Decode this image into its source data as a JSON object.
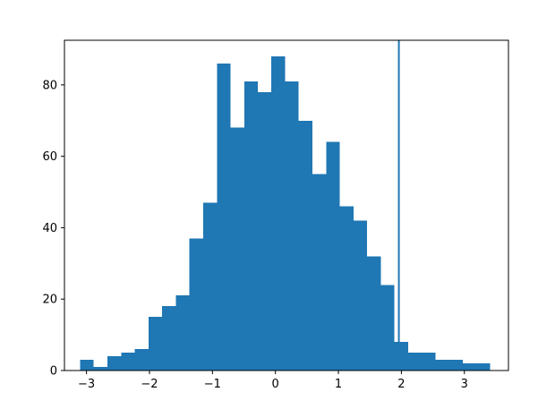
{
  "chart_data": {
    "type": "bar",
    "subtype": "histogram",
    "title": "",
    "xlabel": "",
    "ylabel": "",
    "xlim": [
      -3.35,
      3.7
    ],
    "ylim": [
      0,
      92.5
    ],
    "grid": false,
    "legend": "none",
    "bins": [
      {
        "x0": -3.1,
        "x1": -2.885,
        "count": 3
      },
      {
        "x0": -2.885,
        "x1": -2.665,
        "count": 1
      },
      {
        "x0": -2.665,
        "x1": -2.45,
        "count": 4
      },
      {
        "x0": -2.45,
        "x1": -2.235,
        "count": 5
      },
      {
        "x0": -2.235,
        "x1": -2.015,
        "count": 6
      },
      {
        "x0": -2.015,
        "x1": -1.8,
        "count": 15
      },
      {
        "x0": -1.8,
        "x1": -1.58,
        "count": 18
      },
      {
        "x0": -1.58,
        "x1": -1.365,
        "count": 21
      },
      {
        "x0": -1.365,
        "x1": -1.15,
        "count": 37
      },
      {
        "x0": -1.15,
        "x1": -0.93,
        "count": 47
      },
      {
        "x0": -0.93,
        "x1": -0.715,
        "count": 86
      },
      {
        "x0": -0.715,
        "x1": -0.495,
        "count": 68
      },
      {
        "x0": -0.495,
        "x1": -0.28,
        "count": 81
      },
      {
        "x0": -0.28,
        "x1": -0.065,
        "count": 78
      },
      {
        "x0": -0.065,
        "x1": 0.155,
        "count": 88
      },
      {
        "x0": 0.155,
        "x1": 0.37,
        "count": 81
      },
      {
        "x0": 0.37,
        "x1": 0.59,
        "count": 70
      },
      {
        "x0": 0.59,
        "x1": 0.805,
        "count": 55
      },
      {
        "x0": 0.805,
        "x1": 1.02,
        "count": 64
      },
      {
        "x0": 1.02,
        "x1": 1.24,
        "count": 46
      },
      {
        "x0": 1.24,
        "x1": 1.455,
        "count": 42
      },
      {
        "x0": 1.455,
        "x1": 1.675,
        "count": 32
      },
      {
        "x0": 1.675,
        "x1": 1.89,
        "count": 24
      },
      {
        "x0": 1.89,
        "x1": 2.105,
        "count": 8
      },
      {
        "x0": 2.105,
        "x1": 2.325,
        "count": 5
      },
      {
        "x0": 2.325,
        "x1": 2.54,
        "count": 5
      },
      {
        "x0": 2.54,
        "x1": 2.76,
        "count": 3
      },
      {
        "x0": 2.76,
        "x1": 2.975,
        "count": 3
      },
      {
        "x0": 2.975,
        "x1": 3.19,
        "count": 2
      },
      {
        "x0": 3.19,
        "x1": 3.41,
        "count": 2
      }
    ],
    "vline_x": 1.96,
    "xticks": [
      -3,
      -2,
      -1,
      0,
      1,
      2,
      3
    ],
    "xtick_labels": [
      "−3",
      "−2",
      "−1",
      "0",
      "1",
      "2",
      "3"
    ],
    "yticks": [
      0,
      20,
      40,
      60,
      80
    ],
    "ytick_labels": [
      "0",
      "20",
      "40",
      "60",
      "80"
    ],
    "colors": {
      "bar": "#1f77b4",
      "vline": "#1f77b4",
      "axis": "#000000",
      "background": "#ffffff"
    }
  }
}
